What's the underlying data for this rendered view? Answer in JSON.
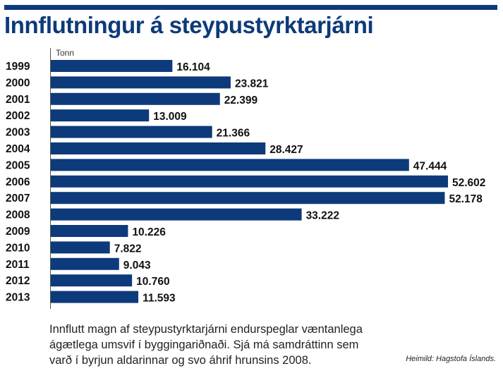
{
  "title": "Innflutningur á steypustyrktarjárni",
  "unit_label": "Tonn",
  "caption": "Innflutt magn af steypustyrktarjárni endurspeglar væntanlega ágætlega umsvif í byggingariðnaði. Sjá má samdráttinn sem varð í byrjun aldarinnar og svo áhrif hrunsins 2008.",
  "source": "Heimild: Hagstofa Íslands.",
  "colors": {
    "bar": "#0d3a7a",
    "title": "#0d3a7a"
  },
  "chart_data": {
    "type": "bar",
    "orientation": "horizontal",
    "title": "Innflutningur á steypustyrktarjárni",
    "xlabel": "Tonn",
    "ylabel": "",
    "categories": [
      "1999",
      "2000",
      "2001",
      "2002",
      "2003",
      "2004",
      "2005",
      "2006",
      "2007",
      "2008",
      "2009",
      "2010",
      "2011",
      "2012",
      "2013"
    ],
    "values": [
      16104,
      23821,
      22399,
      13009,
      21366,
      28427,
      47444,
      52602,
      52178,
      33222,
      10226,
      7822,
      9043,
      10760,
      11593
    ],
    "value_labels": [
      "16.104",
      "23.821",
      "22.399",
      "13.009",
      "21.366",
      "28.427",
      "47.444",
      "52.602",
      "52.178",
      "33.222",
      "10.226",
      "7.822",
      "9.043",
      "10.760",
      "11.593"
    ],
    "grid": false,
    "legend": "none"
  }
}
